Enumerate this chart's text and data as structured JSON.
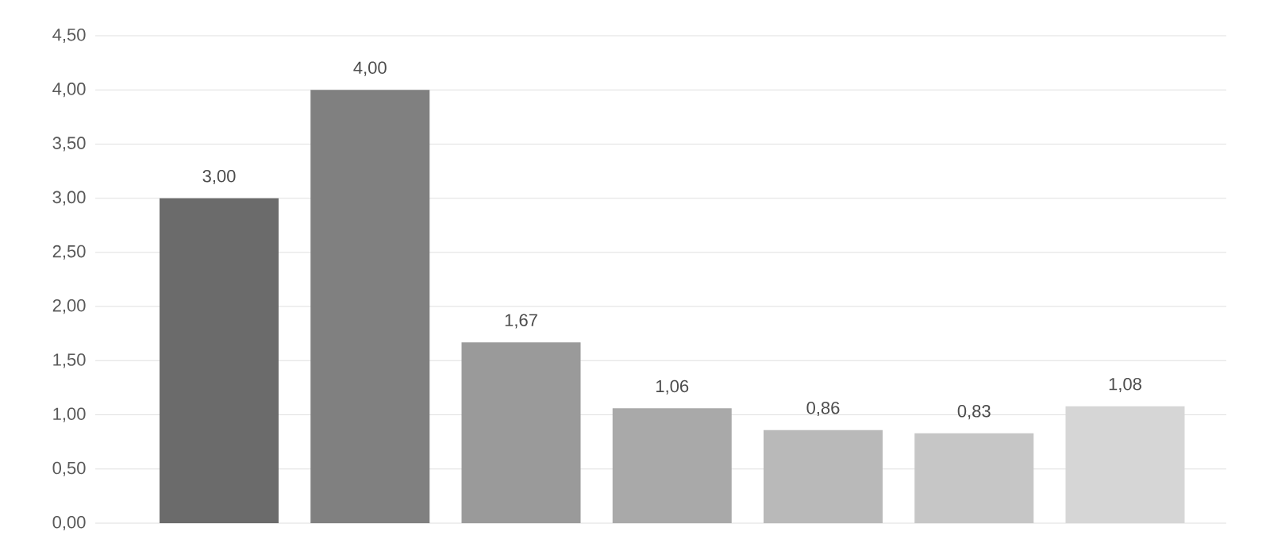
{
  "chart_data": {
    "type": "bar",
    "categories": [
      null,
      null,
      null,
      null,
      null,
      null,
      null
    ],
    "values": [
      3.0,
      4.0,
      1.67,
      1.06,
      0.86,
      0.83,
      1.08
    ],
    "colors": [
      "#6b6b6b",
      "#808080",
      "#9a9a9a",
      "#a9a9a9",
      "#b9b9b9",
      "#c6c6c6",
      "#d6d6d6"
    ],
    "value_labels": [
      "3,00",
      "4,00",
      "1,67",
      "1,06",
      "0,86",
      "0,83",
      "1,08"
    ],
    "ylim": [
      0,
      4.5
    ],
    "yticks": [
      {
        "value": 0,
        "label": "0,00"
      },
      {
        "value": 0.5,
        "label": "0,50"
      },
      {
        "value": 1,
        "label": "1,00"
      },
      {
        "value": 1.5,
        "label": "1,50"
      },
      {
        "value": 2,
        "label": "2,00"
      },
      {
        "value": 2.5,
        "label": "2,50"
      },
      {
        "value": 3,
        "label": "3,00"
      },
      {
        "value": 3.5,
        "label": "3,50"
      },
      {
        "value": 4,
        "label": "4,00"
      },
      {
        "value": 4.5,
        "label": "4,50"
      }
    ],
    "grid": "y"
  }
}
